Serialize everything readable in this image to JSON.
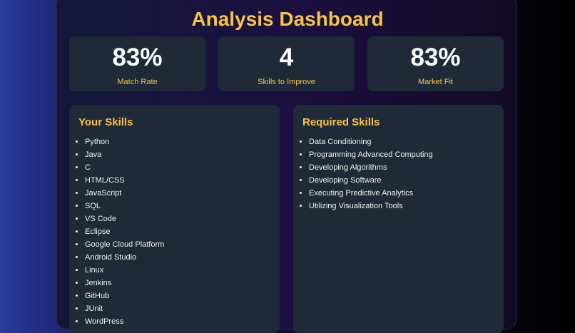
{
  "header": {
    "title": "Analysis Dashboard"
  },
  "stats": [
    {
      "value": "83%",
      "label": "Match Rate"
    },
    {
      "value": "4",
      "label": "Skills to Improve"
    },
    {
      "value": "83%",
      "label": "Market Fit"
    }
  ],
  "your_skills": {
    "title": "Your Skills",
    "items": [
      "Python",
      "Java",
      "C",
      "HTML/CSS",
      "JavaScript",
      "SQL",
      "VS Code",
      "Eclipse",
      "Google Cloud Platform",
      "Android Studio",
      "Linux",
      "Jenkins",
      "GitHub",
      "JUnit",
      "WordPress"
    ]
  },
  "required_skills": {
    "title": "Required Skills",
    "items": [
      "Data Conditioning",
      "Programming Advanced Computing",
      "Developing Algorithms",
      "Developing Software",
      "Executing Predictive Analytics",
      "Utilizing Visualization Tools"
    ]
  }
}
